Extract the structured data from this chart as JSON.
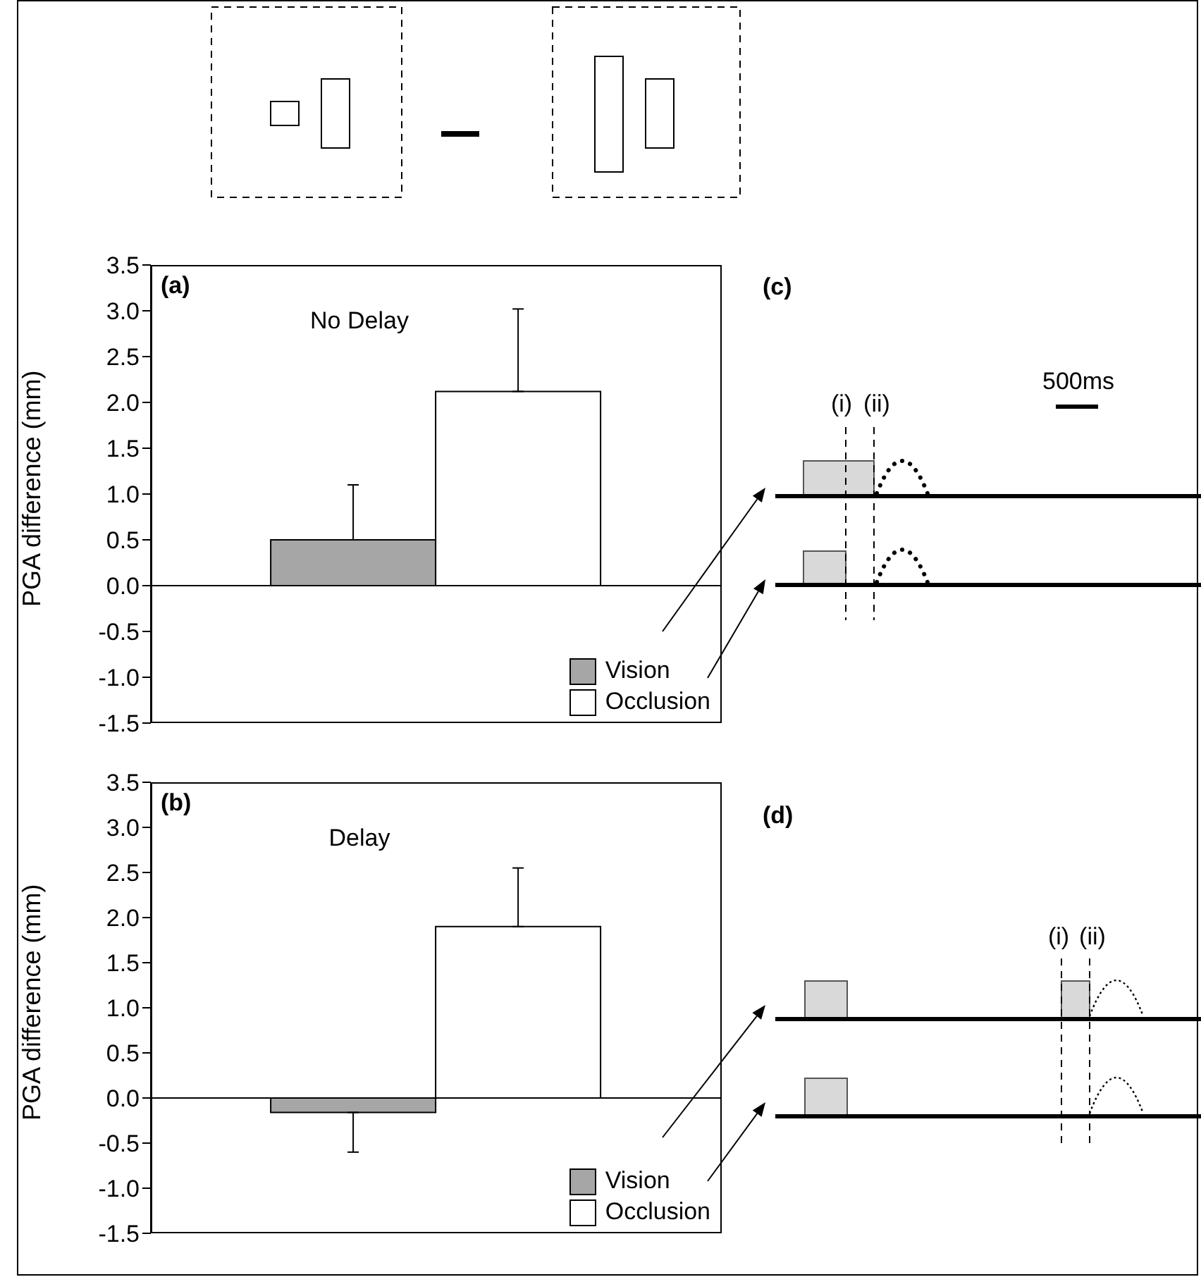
{
  "chart_data": [
    {
      "type": "bar",
      "title": "(a)",
      "subtitle": "No Delay",
      "ylabel": "PGA difference (mm)",
      "categories": [
        null
      ],
      "series": [
        {
          "name": "Vision",
          "color": "#a6a6a6",
          "values": [
            0.5
          ],
          "errors": [
            [
              0.5,
              1.1
            ]
          ]
        },
        {
          "name": "Occlusion",
          "color": "#ffffff",
          "values": [
            2.12
          ],
          "errors": [
            [
              2.12,
              3.02
            ]
          ]
        }
      ],
      "ylim": [
        -1.5,
        3.5
      ],
      "yticks": [
        {
          "value": -1.5,
          "label": "-1.5"
        },
        {
          "value": -1,
          "label": "-1.0"
        },
        {
          "value": -0.5,
          "label": "-0.5"
        },
        {
          "value": 0,
          "label": "0.0"
        },
        {
          "value": 0.5,
          "label": "0.5"
        },
        {
          "value": 1,
          "label": "1.0"
        },
        {
          "value": 1.5,
          "label": "1.5"
        },
        {
          "value": 2,
          "label": "2.0"
        },
        {
          "value": 2.5,
          "label": "2.5"
        },
        {
          "value": 3,
          "label": "3.0"
        },
        {
          "value": 3.5,
          "label": "3.5"
        }
      ],
      "ref_lines": [
        {
          "axis": "y",
          "value": 0
        }
      ],
      "legend": "bottom right",
      "tick_labels": "y"
    },
    {
      "type": "bar",
      "title": "(b)",
      "subtitle": "Delay",
      "ylabel": "PGA difference (mm)",
      "categories": [
        null
      ],
      "series": [
        {
          "name": "Vision",
          "color": "#a6a6a6",
          "values": [
            -0.16
          ],
          "errors": [
            [
              -0.6,
              -0.16
            ]
          ]
        },
        {
          "name": "Occlusion",
          "color": "#ffffff",
          "values": [
            1.9
          ],
          "errors": [
            [
              1.9,
              2.55
            ]
          ]
        }
      ],
      "ylim": [
        -1.5,
        3.5
      ],
      "yticks": [
        {
          "value": -1.5,
          "label": "-1.5"
        },
        {
          "value": -1,
          "label": "-1.0"
        },
        {
          "value": -0.5,
          "label": "-0.5"
        },
        {
          "value": 0,
          "label": "0.0"
        },
        {
          "value": 0.5,
          "label": "0.5"
        },
        {
          "value": 1,
          "label": "1.0"
        },
        {
          "value": 1.5,
          "label": "1.5"
        },
        {
          "value": 2,
          "label": "2.0"
        },
        {
          "value": 2.5,
          "label": "2.5"
        },
        {
          "value": 3,
          "label": "3.0"
        },
        {
          "value": 3.5,
          "label": "3.5"
        }
      ],
      "ref_lines": [
        {
          "axis": "y",
          "value": 0
        }
      ],
      "legend": "bottom right",
      "tick_labels": "y"
    },
    {
      "type": "other",
      "title": "(c)",
      "annotations": [
        "500ms",
        "(i)",
        "(ii)"
      ]
    },
    {
      "type": "other",
      "title": "(d)",
      "annotations": [
        "(i)",
        "(ii)"
      ]
    }
  ]
}
